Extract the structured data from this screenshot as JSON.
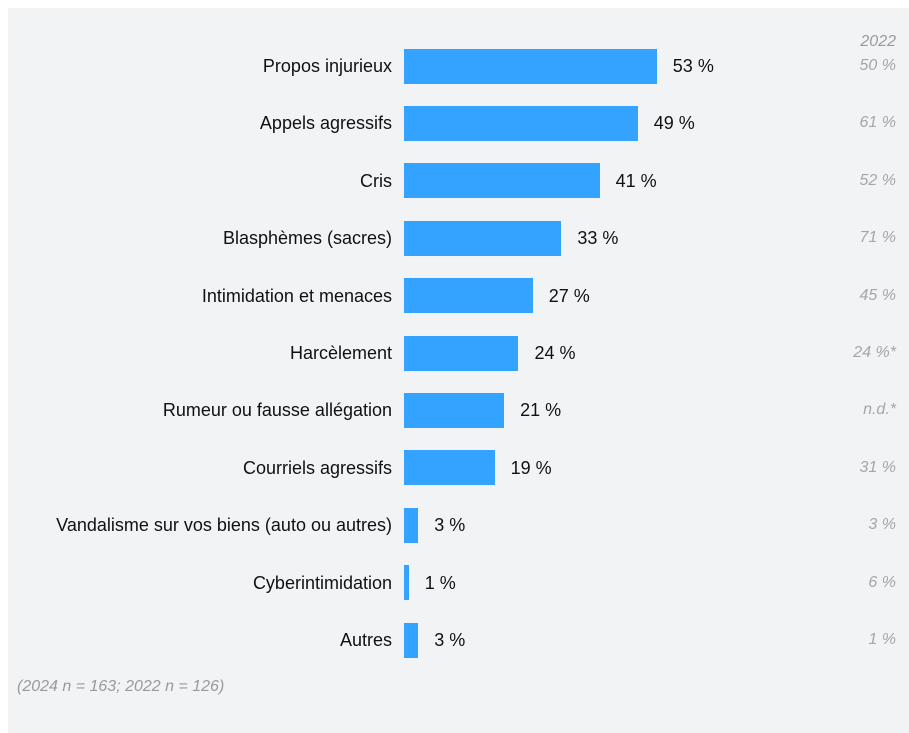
{
  "chart_data": {
    "type": "bar",
    "orientation": "horizontal",
    "categories": [
      "Propos injurieux",
      "Appels agressifs",
      "Cris",
      "Blasphèmes (sacres)",
      "Intimidation et menaces",
      "Harcèlement",
      "Rumeur ou fausse allégation",
      "Courriels agressifs",
      "Vandalisme sur vos biens (auto ou autres)",
      "Cyberintimidation",
      "Autres"
    ],
    "series": [
      {
        "name": "2024",
        "color": "#33a3ff",
        "values": [
          53,
          49,
          41,
          33,
          27,
          24,
          21,
          19,
          3,
          1,
          3
        ],
        "value_labels": [
          "53 %",
          "49 %",
          "41 %",
          "33 %",
          "27 %",
          "24 %",
          "21 %",
          "19 %",
          "3 %",
          "1 %",
          "3 %"
        ]
      },
      {
        "name": "2022",
        "color": "#a6a6a6",
        "values": [
          50,
          61,
          52,
          71,
          45,
          24,
          null,
          31,
          3,
          6,
          1
        ],
        "value_labels": [
          "50 %",
          "61 %",
          "52 %",
          "71 %",
          "45 %",
          "24 %*",
          "n.d.*",
          "31 %",
          "3 %",
          "6 %",
          "1 %"
        ]
      }
    ],
    "footnote": "(2024 n = 163; 2022 n = 126)"
  }
}
